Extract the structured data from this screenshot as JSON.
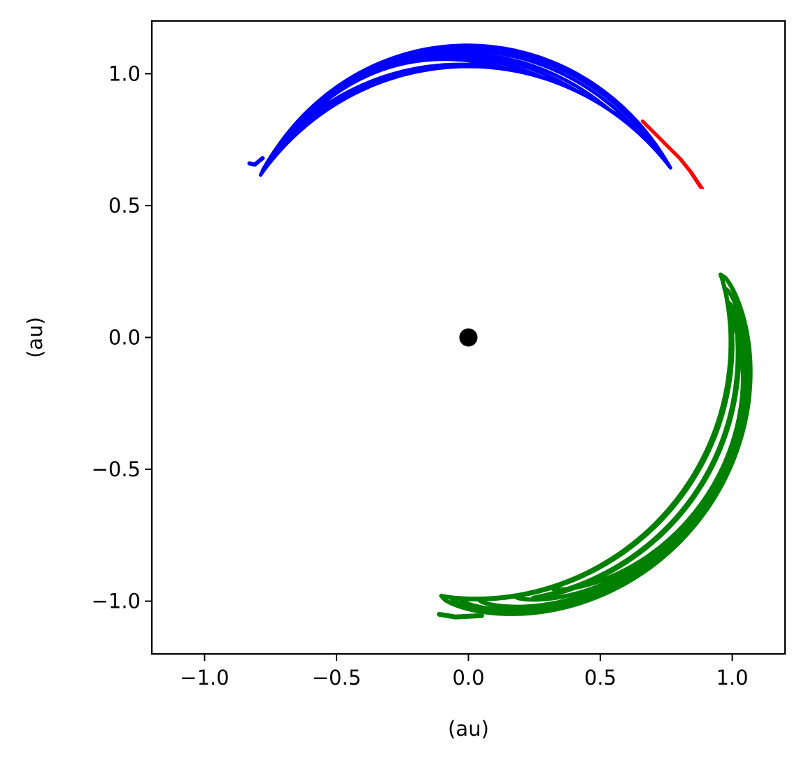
{
  "chart_data": {
    "type": "line",
    "title": "",
    "xlabel": "(au)",
    "ylabel": "(au)",
    "xlim": [
      -1.2,
      1.2
    ],
    "ylim": [
      -1.2,
      1.2
    ],
    "grid": false,
    "xticks": [
      -1.0,
      -0.5,
      0.0,
      0.5,
      1.0
    ],
    "yticks": [
      -1.0,
      -0.5,
      0.0,
      0.5,
      1.0
    ],
    "xtick_labels": [
      "−1.0",
      "−0.5",
      "0.0",
      "0.5",
      "1.0"
    ],
    "ytick_labels": [
      "−1.0",
      "−0.5",
      "0.0",
      "0.5",
      "1.0"
    ],
    "central_body": {
      "x": 0.0,
      "y": 0.0,
      "color": "#000000"
    },
    "series": [
      {
        "color": "#0000ff",
        "shape": "crescent with nested loops",
        "angle_range_deg": [
          38,
          142
        ],
        "radius_range_au": [
          0.99,
          1.11
        ],
        "tip_points": [
          [
            -0.83,
            0.66
          ],
          [
            0.45,
            0.96
          ]
        ]
      },
      {
        "color": "#ff0000",
        "shape": "short arc",
        "x": [
          0.66,
          0.7,
          0.75,
          0.8,
          0.84,
          0.88
        ],
        "y": [
          0.82,
          0.78,
          0.73,
          0.68,
          0.63,
          0.57
        ]
      },
      {
        "color": "#008000",
        "shape": "double crescent (horseshoe)",
        "angle_range_deg": [
          -96,
          14
        ],
        "radius_range_au": [
          0.97,
          1.12
        ],
        "tip_points": [
          [
            1.04,
            0.26
          ],
          [
            -0.11,
            -1.05
          ]
        ]
      }
    ]
  }
}
